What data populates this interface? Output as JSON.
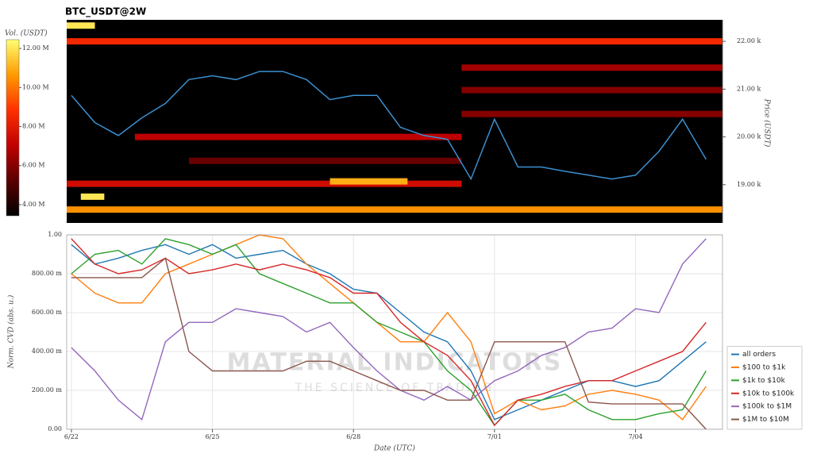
{
  "chart_data": [
    {
      "type": "heatmap",
      "title": "BTC_USDT@2W",
      "y_label": "Price (USDT)",
      "colorbar_label": "Vol. (USDT)",
      "xlim": [
        -0.1,
        13.85
      ],
      "ylim": [
        18200,
        22450
      ],
      "yticks": [
        {
          "value": 19000,
          "label": "19.00 k"
        },
        {
          "value": 20000,
          "label": "20.00 k"
        },
        {
          "value": 21000,
          "label": "21.00 k"
        },
        {
          "value": 22000,
          "label": "22.00 k"
        }
      ],
      "clim": [
        3430000,
        12450000
      ],
      "cticks": [
        {
          "value": 4000000,
          "label": "4.00 M"
        },
        {
          "value": 6000000,
          "label": "6.00 M"
        },
        {
          "value": 8000000,
          "label": "8.00 M"
        },
        {
          "value": 10000000,
          "label": "10.00 M"
        },
        {
          "value": 12000000,
          "label": "12.00 M"
        }
      ],
      "colors": [
        "#000000",
        "#5a0000",
        "#c00000",
        "#ff3000",
        "#ff9a00",
        "#ffff70"
      ],
      "bands": [
        {
          "price": 22000,
          "x_range": [
            -0.1,
            13.85
          ],
          "volume": 8500000
        },
        {
          "price": 18480,
          "x_range": [
            -0.1,
            13.85
          ],
          "volume": 10500000
        },
        {
          "price": 19020,
          "x_range": [
            -0.1,
            8.3
          ],
          "volume": 7500000
        },
        {
          "price": 19070,
          "x_range": [
            5.5,
            7.15
          ],
          "volume": 11000000
        },
        {
          "price": 20000,
          "x_range": [
            1.35,
            8.3
          ],
          "volume": 7000000
        },
        {
          "price": 21450,
          "x_range": [
            8.3,
            13.85
          ],
          "volume": 6500000
        },
        {
          "price": 20980,
          "x_range": [
            8.3,
            13.85
          ],
          "volume": 6000000
        },
        {
          "price": 20480,
          "x_range": [
            8.3,
            13.85
          ],
          "volume": 6000000
        },
        {
          "price": 19500,
          "x_range": [
            2.5,
            8.3
          ],
          "volume": 5500000
        },
        {
          "price": 22330,
          "x_range": [
            -0.1,
            0.5
          ],
          "volume": 12000000
        },
        {
          "price": 18750,
          "x_range": [
            0.2,
            0.7
          ],
          "volume": 12000000
        }
      ],
      "x": [
        0,
        0.5,
        1,
        1.5,
        2,
        2.5,
        3,
        3.5,
        4,
        4.5,
        5,
        5.5,
        6,
        6.5,
        7,
        7.5,
        8,
        8.5,
        9,
        9.5,
        10,
        10.5,
        11,
        11.5,
        12,
        12.5,
        13,
        13.5
      ],
      "price": [
        20870,
        20300,
        20030,
        20400,
        20700,
        21200,
        21280,
        21200,
        21370,
        21370,
        21200,
        20780,
        20870,
        20870,
        20200,
        20030,
        19950,
        19120,
        20370,
        19370,
        19370,
        19280,
        19200,
        19120,
        19200,
        19700,
        20370,
        19530
      ],
      "line_color": "#3b8fd0"
    },
    {
      "type": "line",
      "x_label": "Date (UTC)",
      "y_label": "Norm. CVD (abs. u.)",
      "xlim": [
        -0.1,
        13.85
      ],
      "xticks": [
        {
          "value": 0,
          "label": "6/22"
        },
        {
          "value": 3,
          "label": "6/25"
        },
        {
          "value": 6,
          "label": "6/28"
        },
        {
          "value": 9,
          "label": "7/01"
        },
        {
          "value": 12,
          "label": "7/04"
        }
      ],
      "ylim": [
        0,
        1
      ],
      "yticks": [
        {
          "value": 0,
          "label": "0.00"
        },
        {
          "value": 0.2,
          "label": "200.00 m"
        },
        {
          "value": 0.4,
          "label": "400.00 m"
        },
        {
          "value": 0.6,
          "label": "600.00 m"
        },
        {
          "value": 0.8,
          "label": "800.00 m"
        },
        {
          "value": 1,
          "label": "1.00"
        }
      ],
      "grid": true,
      "legend": "lower right",
      "watermark": {
        "title": "MATERIAL INDICATORS",
        "subtitle": "THE SCIENCE OF TRADING"
      },
      "x": [
        0,
        0.5,
        1,
        1.5,
        2,
        2.5,
        3,
        3.5,
        4,
        4.5,
        5,
        5.5,
        6,
        6.5,
        7,
        7.5,
        8,
        8.5,
        9,
        9.5,
        10,
        10.5,
        11,
        11.5,
        12,
        12.5,
        13,
        13.5
      ],
      "series": [
        {
          "name": "all orders",
          "color": "#1f77b4",
          "values": [
            0.95,
            0.85,
            0.88,
            0.92,
            0.95,
            0.9,
            0.95,
            0.88,
            0.9,
            0.92,
            0.85,
            0.8,
            0.72,
            0.7,
            0.6,
            0.5,
            0.45,
            0.3,
            0.05,
            0.1,
            0.15,
            0.2,
            0.25,
            0.25,
            0.22,
            0.25,
            0.35,
            0.45
          ]
        },
        {
          "name": "$100 to $1k",
          "color": "#ff7f0e",
          "values": [
            0.8,
            0.7,
            0.65,
            0.65,
            0.8,
            0.85,
            0.9,
            0.95,
            1.0,
            0.98,
            0.85,
            0.75,
            0.65,
            0.55,
            0.45,
            0.45,
            0.6,
            0.45,
            0.08,
            0.15,
            0.1,
            0.12,
            0.18,
            0.2,
            0.18,
            0.15,
            0.05,
            0.22
          ]
        },
        {
          "name": "$1k to $10k",
          "color": "#2ca02c",
          "values": [
            0.8,
            0.9,
            0.92,
            0.85,
            0.98,
            0.95,
            0.9,
            0.95,
            0.8,
            0.75,
            0.7,
            0.65,
            0.65,
            0.55,
            0.5,
            0.45,
            0.3,
            0.2,
            0.02,
            0.15,
            0.15,
            0.18,
            0.1,
            0.05,
            0.05,
            0.08,
            0.1,
            0.3
          ]
        },
        {
          "name": "$10k to $100k",
          "color": "#d62728",
          "values": [
            0.98,
            0.85,
            0.8,
            0.82,
            0.88,
            0.8,
            0.82,
            0.85,
            0.82,
            0.85,
            0.82,
            0.78,
            0.7,
            0.7,
            0.55,
            0.45,
            0.38,
            0.25,
            0.02,
            0.15,
            0.18,
            0.22,
            0.25,
            0.25,
            0.3,
            0.35,
            0.4,
            0.55
          ]
        },
        {
          "name": "$100k to $1M",
          "color": "#9467bd",
          "values": [
            0.42,
            0.3,
            0.15,
            0.05,
            0.45,
            0.55,
            0.55,
            0.62,
            0.6,
            0.58,
            0.5,
            0.55,
            0.42,
            0.3,
            0.2,
            0.15,
            0.22,
            0.15,
            0.25,
            0.3,
            0.38,
            0.42,
            0.5,
            0.52,
            0.62,
            0.6,
            0.85,
            0.98
          ]
        },
        {
          "name": "$1M to $10M",
          "color": "#8c564b",
          "values": [
            0.78,
            0.78,
            0.78,
            0.78,
            0.88,
            0.4,
            0.3,
            0.3,
            0.3,
            0.3,
            0.35,
            0.35,
            0.3,
            0.25,
            0.2,
            0.2,
            0.15,
            0.15,
            0.45,
            0.45,
            0.45,
            0.45,
            0.14,
            0.13,
            0.13,
            0.13,
            0.13,
            0.0
          ]
        }
      ]
    }
  ]
}
